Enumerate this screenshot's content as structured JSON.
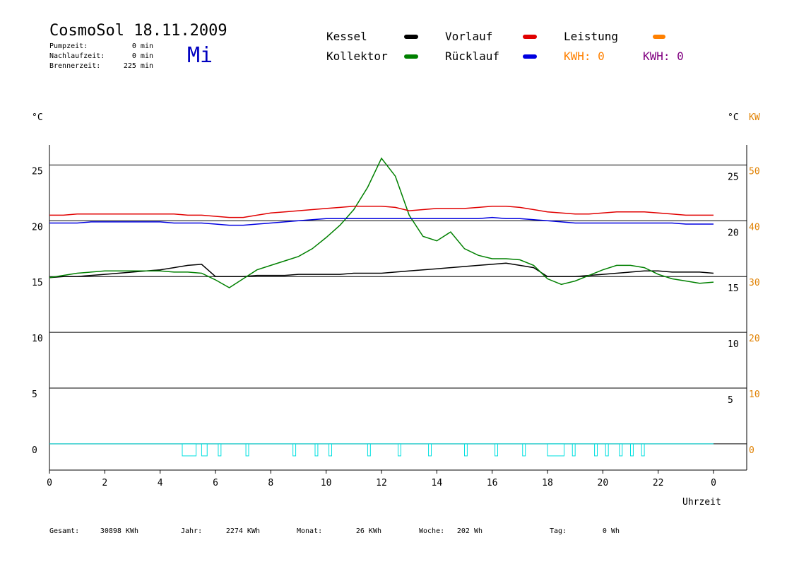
{
  "header": {
    "title": "CosmoSol 18.11.2009",
    "day": "Mi",
    "stats": [
      {
        "label": "Pumpzeit:",
        "value": "0 min"
      },
      {
        "label": "Nachlaufzeit:",
        "value": "0 min"
      },
      {
        "label": "Brennerzeit:",
        "value": "225 min"
      }
    ],
    "power_legend": {
      "name": "Leistung",
      "color": "#ff8000"
    },
    "kwh": [
      {
        "text": "KWH: 0",
        "color": "#ff8000"
      },
      {
        "text": "KWH: 0",
        "color": "#800080"
      }
    ]
  },
  "chart_data": {
    "type": "line",
    "y_unit": "°C",
    "y2_unit": "°C",
    "y3_unit": "KW",
    "x_label": "Uhrzeit",
    "x": [
      0,
      0.5,
      1,
      1.5,
      2,
      2.5,
      3,
      3.5,
      4,
      4.5,
      5,
      5.5,
      6,
      6.5,
      7,
      7.5,
      8,
      8.5,
      9,
      9.5,
      10,
      10.5,
      11,
      11.5,
      12,
      12.5,
      13,
      13.5,
      14,
      14.5,
      15,
      15.5,
      16,
      16.5,
      17,
      17.5,
      18,
      18.5,
      19,
      19.5,
      20,
      20.5,
      21,
      21.5,
      22,
      22.5,
      23,
      23.5,
      24
    ],
    "xlim": [
      0,
      25.2
    ],
    "xticks": [
      0,
      2,
      4,
      6,
      8,
      10,
      12,
      14,
      16,
      18,
      20,
      22,
      {
        "value": 24,
        "label": "0"
      }
    ],
    "ylim": [
      -2.35,
      26.8
    ],
    "yticks": [
      0,
      5,
      10,
      15,
      20,
      25
    ],
    "yticks_right": [
      5,
      10,
      15,
      20,
      25
    ],
    "y2lim": [
      -4.7,
      53.6
    ],
    "y2ticks": [
      0,
      10,
      20,
      30,
      40,
      50
    ],
    "grid": true,
    "series": [
      {
        "name": "Kessel",
        "color": "#000000",
        "values": [
          14.9,
          15.0,
          15.0,
          15.1,
          15.2,
          15.3,
          15.4,
          15.5,
          15.6,
          15.8,
          16.0,
          16.1,
          15.0,
          15.0,
          15.0,
          15.1,
          15.1,
          15.1,
          15.2,
          15.2,
          15.2,
          15.2,
          15.3,
          15.3,
          15.3,
          15.4,
          15.5,
          15.6,
          15.7,
          15.8,
          15.9,
          16.0,
          16.1,
          16.2,
          16.0,
          15.8,
          15.0,
          15.0,
          15.0,
          15.1,
          15.2,
          15.3,
          15.4,
          15.5,
          15.5,
          15.4,
          15.4,
          15.4,
          15.3
        ]
      },
      {
        "name": "Kollektor",
        "color": "#008000",
        "values": [
          14.9,
          15.1,
          15.3,
          15.4,
          15.5,
          15.5,
          15.5,
          15.5,
          15.5,
          15.4,
          15.4,
          15.3,
          14.7,
          14.0,
          14.8,
          15.6,
          16.0,
          16.4,
          16.8,
          17.5,
          18.5,
          19.6,
          21.0,
          23.0,
          25.6,
          24.0,
          20.5,
          18.6,
          18.2,
          19.0,
          17.5,
          16.9,
          16.6,
          16.6,
          16.5,
          16.0,
          14.8,
          14.3,
          14.6,
          15.1,
          15.6,
          16.0,
          16.0,
          15.8,
          15.2,
          14.8,
          14.6,
          14.4,
          14.5
        ]
      },
      {
        "name": "Vorlauf",
        "color": "#e00000",
        "values": [
          20.5,
          20.5,
          20.6,
          20.6,
          20.6,
          20.6,
          20.6,
          20.6,
          20.6,
          20.6,
          20.5,
          20.5,
          20.4,
          20.3,
          20.3,
          20.5,
          20.7,
          20.8,
          20.9,
          21.0,
          21.1,
          21.2,
          21.3,
          21.3,
          21.3,
          21.2,
          20.9,
          21.0,
          21.1,
          21.1,
          21.1,
          21.2,
          21.3,
          21.3,
          21.2,
          21.0,
          20.8,
          20.7,
          20.6,
          20.6,
          20.7,
          20.8,
          20.8,
          20.8,
          20.7,
          20.6,
          20.5,
          20.5,
          20.5
        ]
      },
      {
        "name": "Rücklauf",
        "color": "#0000e0",
        "values": [
          19.8,
          19.8,
          19.8,
          19.9,
          19.9,
          19.9,
          19.9,
          19.9,
          19.9,
          19.8,
          19.8,
          19.8,
          19.7,
          19.6,
          19.6,
          19.7,
          19.8,
          19.9,
          20.0,
          20.1,
          20.2,
          20.2,
          20.2,
          20.2,
          20.2,
          20.2,
          20.2,
          20.2,
          20.2,
          20.2,
          20.2,
          20.2,
          20.3,
          20.2,
          20.2,
          20.1,
          20.0,
          19.9,
          19.8,
          19.8,
          19.8,
          19.8,
          19.8,
          19.8,
          19.8,
          19.8,
          19.7,
          19.7,
          19.7
        ]
      }
    ],
    "pump_color": "#00e0e0",
    "pump_intervals": [
      [
        4.8,
        5.3
      ],
      [
        5.5,
        5.7
      ],
      [
        6.1,
        6.2
      ],
      [
        7.1,
        7.2
      ],
      [
        8.8,
        8.9
      ],
      [
        9.6,
        9.7
      ],
      [
        10.1,
        10.2
      ],
      [
        11.5,
        11.6
      ],
      [
        12.6,
        12.7
      ],
      [
        13.7,
        13.8
      ],
      [
        15.0,
        15.1
      ],
      [
        16.1,
        16.2
      ],
      [
        17.1,
        17.2
      ],
      [
        18.0,
        18.6
      ],
      [
        18.9,
        19.0
      ],
      [
        19.7,
        19.8
      ],
      [
        20.1,
        20.2
      ],
      [
        20.6,
        20.7
      ],
      [
        21.0,
        21.1
      ],
      [
        21.4,
        21.5
      ]
    ]
  },
  "footer": [
    {
      "label": "Gesamt:",
      "value": "30898 KWh"
    },
    {
      "label": "Jahr:",
      "value": "2274 KWh"
    },
    {
      "label": "Monat:",
      "value": "26 KWh"
    },
    {
      "label": "Woche:",
      "value": "202 Wh"
    },
    {
      "label": "Tag:",
      "value": "0 Wh"
    }
  ]
}
